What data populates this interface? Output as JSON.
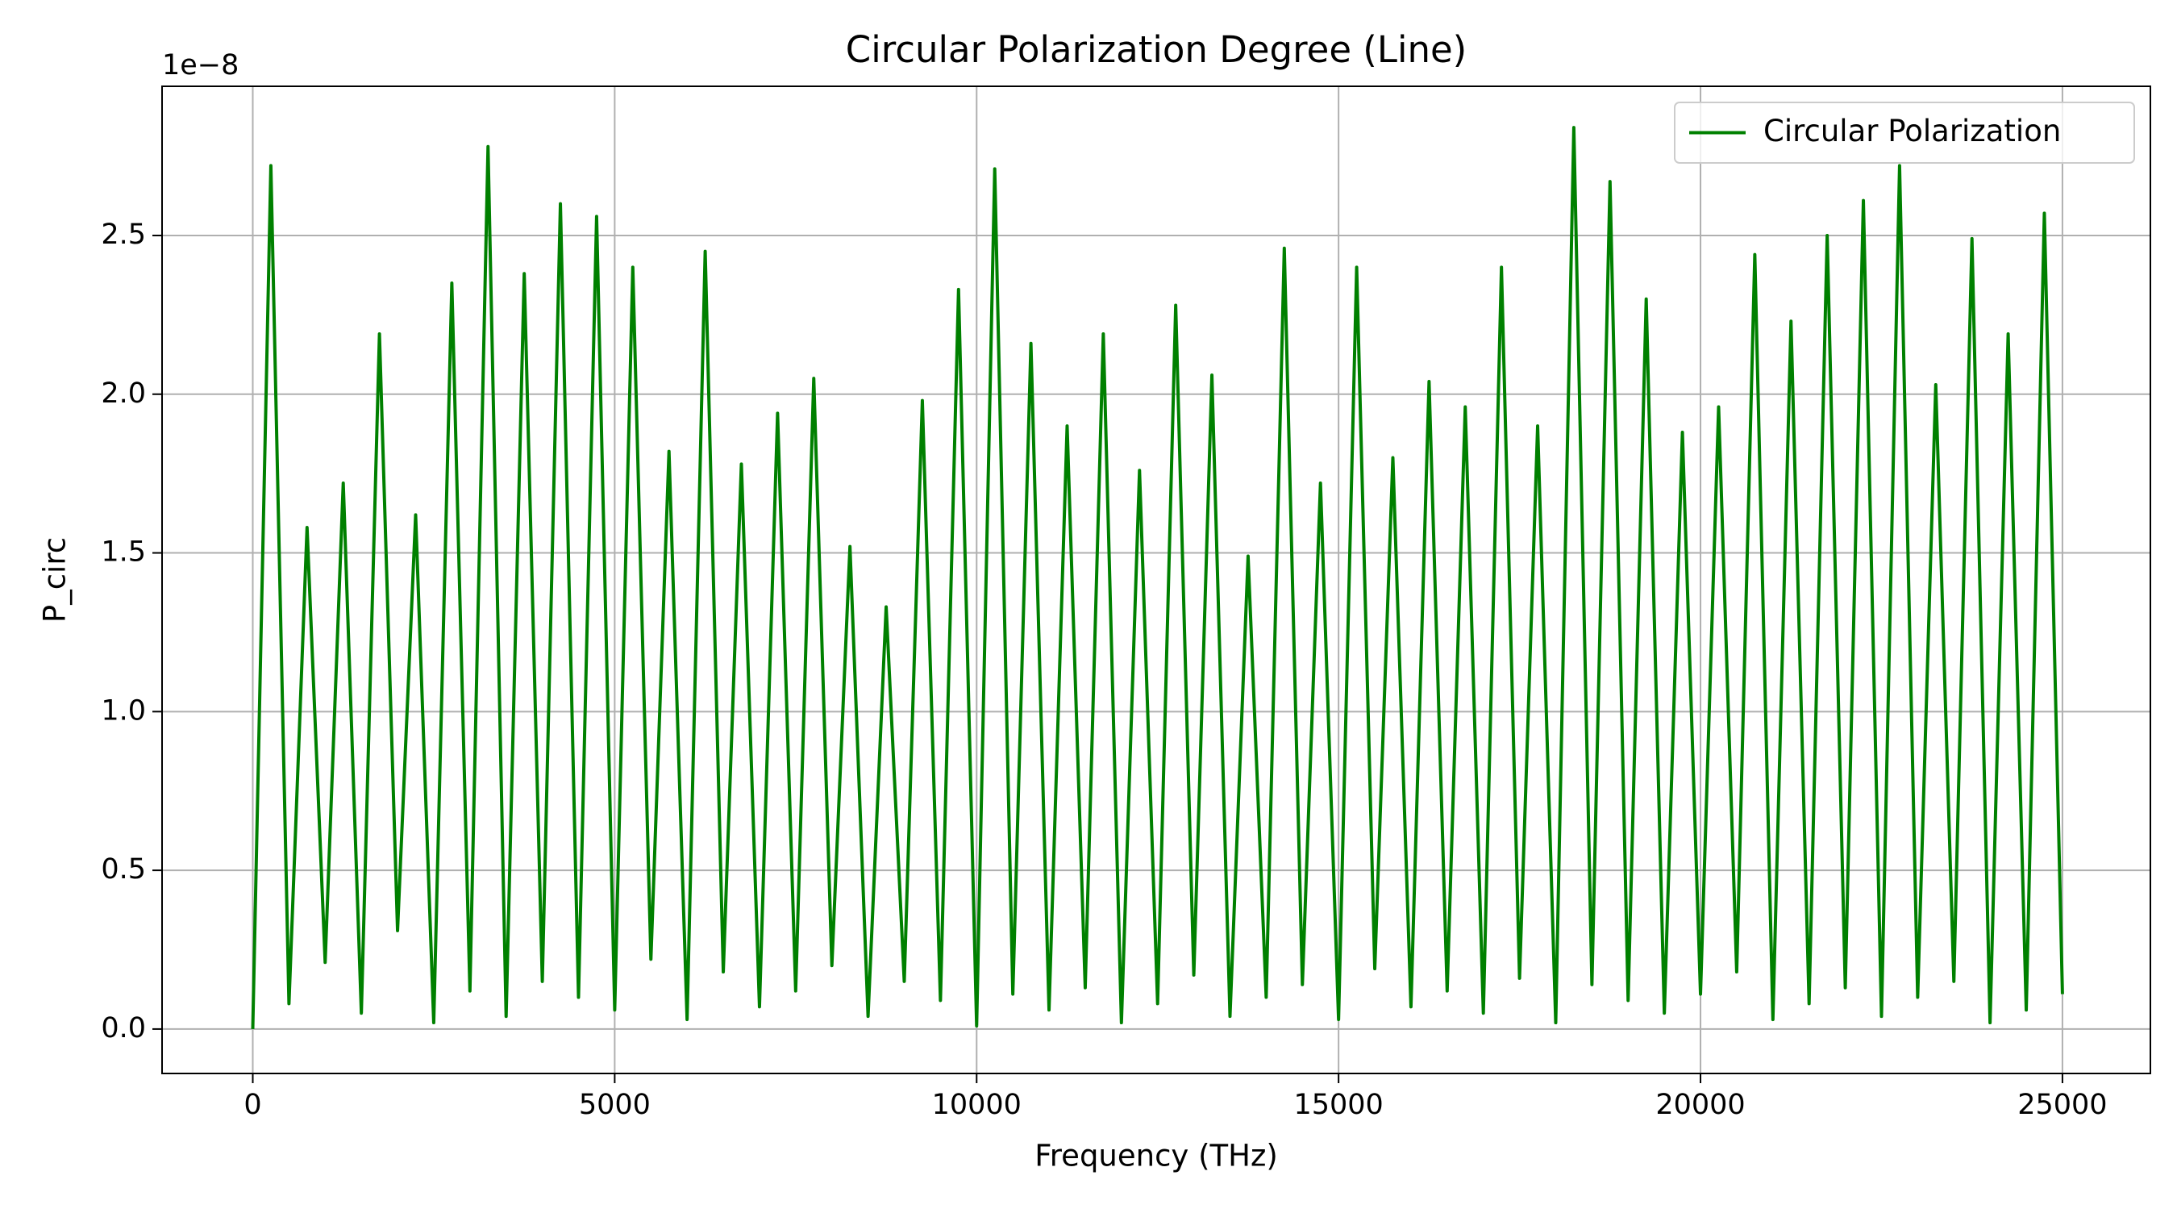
{
  "chart_data": {
    "type": "line",
    "title": "Circular Polarization Degree (Line)",
    "x_label": "Frequency (THz)",
    "y_label": "P_circ",
    "y_offset_label": "1e−8",
    "x": [
      0,
      250,
      500,
      750,
      1000,
      1250,
      1500,
      1750,
      2000,
      2250,
      2500,
      2750,
      3000,
      3250,
      3500,
      3750,
      4000,
      4250,
      4500,
      4750,
      5000,
      5250,
      5500,
      5750,
      6000,
      6250,
      6500,
      6750,
      7000,
      7250,
      7500,
      7750,
      8000,
      8250,
      8500,
      8750,
      9000,
      9250,
      9500,
      9750,
      10000,
      10250,
      10500,
      10750,
      11000,
      11250,
      11500,
      11750,
      12000,
      12250,
      12500,
      12750,
      13000,
      13250,
      13500,
      13750,
      14000,
      14250,
      14500,
      14750,
      15000,
      15250,
      15500,
      15750,
      16000,
      16250,
      16500,
      16750,
      17000,
      17250,
      17500,
      17750,
      18000,
      18250,
      18500,
      18750,
      19000,
      19250,
      19500,
      19750,
      20000,
      20250,
      20500,
      20750,
      21000,
      21250,
      21500,
      21750,
      22000,
      22250,
      22500,
      22750,
      23000,
      23250,
      23500,
      23750,
      24000,
      24250,
      24500,
      24750,
      25000
    ],
    "series": [
      {
        "name": "Circular Polarization",
        "color": "#008000",
        "values": [
          0.0,
          2.72,
          0.08,
          1.58,
          0.21,
          1.72,
          0.05,
          2.19,
          0.31,
          1.62,
          0.02,
          2.35,
          0.12,
          2.78,
          0.04,
          2.38,
          0.15,
          2.6,
          0.1,
          2.56,
          0.06,
          2.4,
          0.22,
          1.82,
          0.03,
          2.45,
          0.18,
          1.78,
          0.07,
          1.94,
          0.12,
          2.05,
          0.2,
          1.52,
          0.04,
          1.33,
          0.15,
          1.98,
          0.09,
          2.33,
          0.01,
          2.71,
          0.11,
          2.16,
          0.06,
          1.9,
          0.13,
          2.19,
          0.02,
          1.76,
          0.08,
          2.28,
          0.17,
          2.06,
          0.04,
          1.49,
          0.1,
          2.46,
          0.14,
          1.72,
          0.03,
          2.4,
          0.19,
          1.8,
          0.07,
          2.04,
          0.12,
          1.96,
          0.05,
          2.4,
          0.16,
          1.9,
          0.02,
          2.84,
          0.14,
          2.67,
          0.09,
          2.3,
          0.05,
          1.88,
          0.11,
          1.96,
          0.18,
          2.44,
          0.03,
          2.23,
          0.08,
          2.5,
          0.13,
          2.61,
          0.04,
          2.72,
          0.1,
          2.03,
          0.15,
          2.49,
          0.02,
          2.19,
          0.06,
          2.57,
          0.11
        ]
      }
    ],
    "xlim": [
      -1253,
      26215
    ],
    "ylim": [
      -0.14,
      2.97
    ],
    "xticks": [
      0,
      5000,
      10000,
      15000,
      20000,
      25000
    ],
    "yticks": [
      {
        "value": 0,
        "label": "0.0"
      },
      0.5,
      {
        "value": 1,
        "label": "1.0"
      },
      1.5,
      {
        "value": 2,
        "label": "2.0"
      },
      2.5
    ],
    "grid": true,
    "legend_position": "upper right"
  }
}
